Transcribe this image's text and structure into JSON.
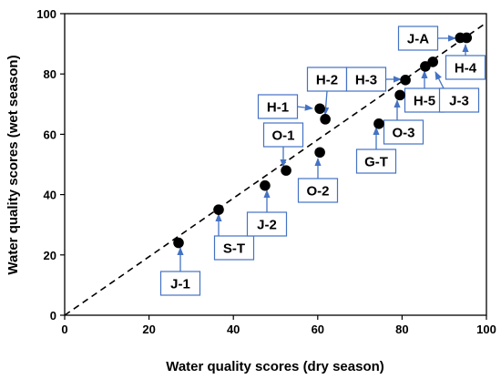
{
  "chart_data": {
    "type": "scatter",
    "title": "",
    "xlabel": "Water quality scores (dry season)",
    "ylabel": "Water quality scores (wet season)",
    "xlim": [
      0,
      100
    ],
    "ylim": [
      0,
      100
    ],
    "xticks": [
      "0",
      "20",
      "40",
      "60",
      "80",
      "100"
    ],
    "yticks": [
      "0",
      "20",
      "40",
      "60",
      "80",
      "100"
    ],
    "grid": false,
    "reference_line": {
      "style": "dashed",
      "from": [
        0,
        0
      ],
      "to": [
        100,
        97
      ]
    },
    "points": [
      {
        "label": "J-1",
        "x": 27,
        "y": 24
      },
      {
        "label": "S-T",
        "x": 36.5,
        "y": 35
      },
      {
        "label": "J-2",
        "x": 47.5,
        "y": 43
      },
      {
        "label": "O-1",
        "x": 52.5,
        "y": 48
      },
      {
        "label": "O-2",
        "x": 60.5,
        "y": 54
      },
      {
        "label": "H-1",
        "x": 60.5,
        "y": 68.5
      },
      {
        "label": "H-2",
        "x": 61.8,
        "y": 65
      },
      {
        "label": "G-T",
        "x": 74.5,
        "y": 63.5
      },
      {
        "label": "O-3",
        "x": 79.5,
        "y": 73
      },
      {
        "label": "H-3",
        "x": 80.8,
        "y": 78
      },
      {
        "label": "H-5",
        "x": 85.5,
        "y": 82.5
      },
      {
        "label": "J-3",
        "x": 87.3,
        "y": 84
      },
      {
        "label": "J-A",
        "x": 93.8,
        "y": 92
      },
      {
        "label": "H-4",
        "x": 95.3,
        "y": 92
      }
    ],
    "colors": {
      "points": "#000000",
      "callout": "#4472C4",
      "reference_line": "#000000"
    }
  }
}
